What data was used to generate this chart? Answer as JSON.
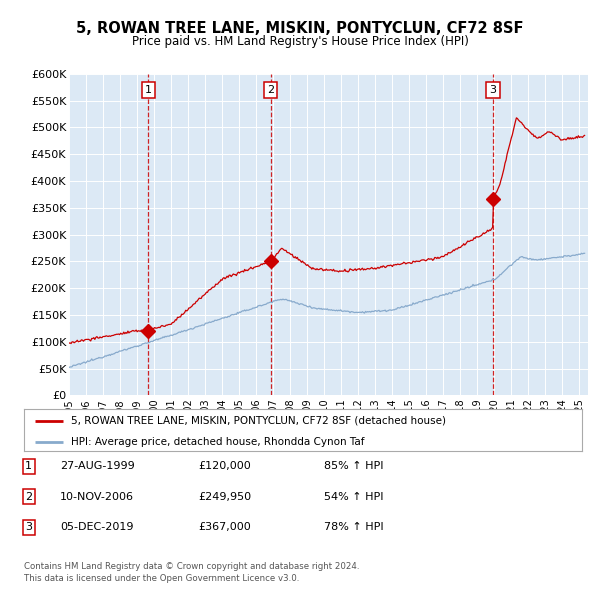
{
  "title": "5, ROWAN TREE LANE, MISKIN, PONTYCLUN, CF72 8SF",
  "subtitle": "Price paid vs. HM Land Registry's House Price Index (HPI)",
  "ylabel_ticks": [
    "£0",
    "£50K",
    "£100K",
    "£150K",
    "£200K",
    "£250K",
    "£300K",
    "£350K",
    "£400K",
    "£450K",
    "£500K",
    "£550K",
    "£600K"
  ],
  "ytick_values": [
    0,
    50000,
    100000,
    150000,
    200000,
    250000,
    300000,
    350000,
    400000,
    450000,
    500000,
    550000,
    600000
  ],
  "price_paid_color": "#cc0000",
  "hpi_color": "#88aacc",
  "background_color": "#dce9f5",
  "plot_bg_color": "#dce9f5",
  "grid_color": "#ffffff",
  "sale_dates": [
    1999.65,
    2006.86,
    2019.92
  ],
  "sale_prices": [
    120000,
    249950,
    367000
  ],
  "sale_labels": [
    "1",
    "2",
    "3"
  ],
  "legend_entries": [
    "5, ROWAN TREE LANE, MISKIN, PONTYCLUN, CF72 8SF (detached house)",
    "HPI: Average price, detached house, Rhondda Cynon Taf"
  ],
  "table_data": [
    {
      "num": "1",
      "date": "27-AUG-1999",
      "price": "£120,000",
      "change": "85% ↑ HPI"
    },
    {
      "num": "2",
      "date": "10-NOV-2006",
      "price": "£249,950",
      "change": "54% ↑ HPI"
    },
    {
      "num": "3",
      "date": "05-DEC-2019",
      "price": "£367,000",
      "change": "78% ↑ HPI"
    }
  ],
  "footer": "Contains HM Land Registry data © Crown copyright and database right 2024.\nThis data is licensed under the Open Government Licence v3.0.",
  "xmin": 1995.0,
  "xmax": 2025.5,
  "ymin": 0,
  "ymax": 600000
}
